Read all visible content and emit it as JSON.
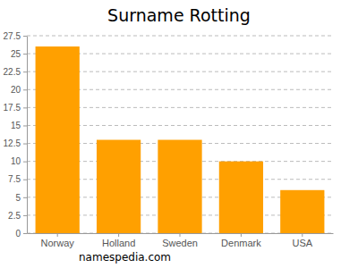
{
  "chart_data": {
    "type": "bar",
    "title": "Surname Rotting",
    "categories": [
      "Norway",
      "Holland",
      "Sweden",
      "Denmark",
      "USA"
    ],
    "values": [
      26,
      13,
      13,
      10,
      6
    ],
    "color": "#ffa000",
    "ylim": [
      0,
      27.5
    ],
    "yticks": [
      0,
      2.5,
      5,
      7.5,
      10,
      12.5,
      15,
      17.5,
      20,
      22.5,
      25,
      27.5
    ],
    "grid": true,
    "annotations": [
      "namespedia.com"
    ]
  }
}
